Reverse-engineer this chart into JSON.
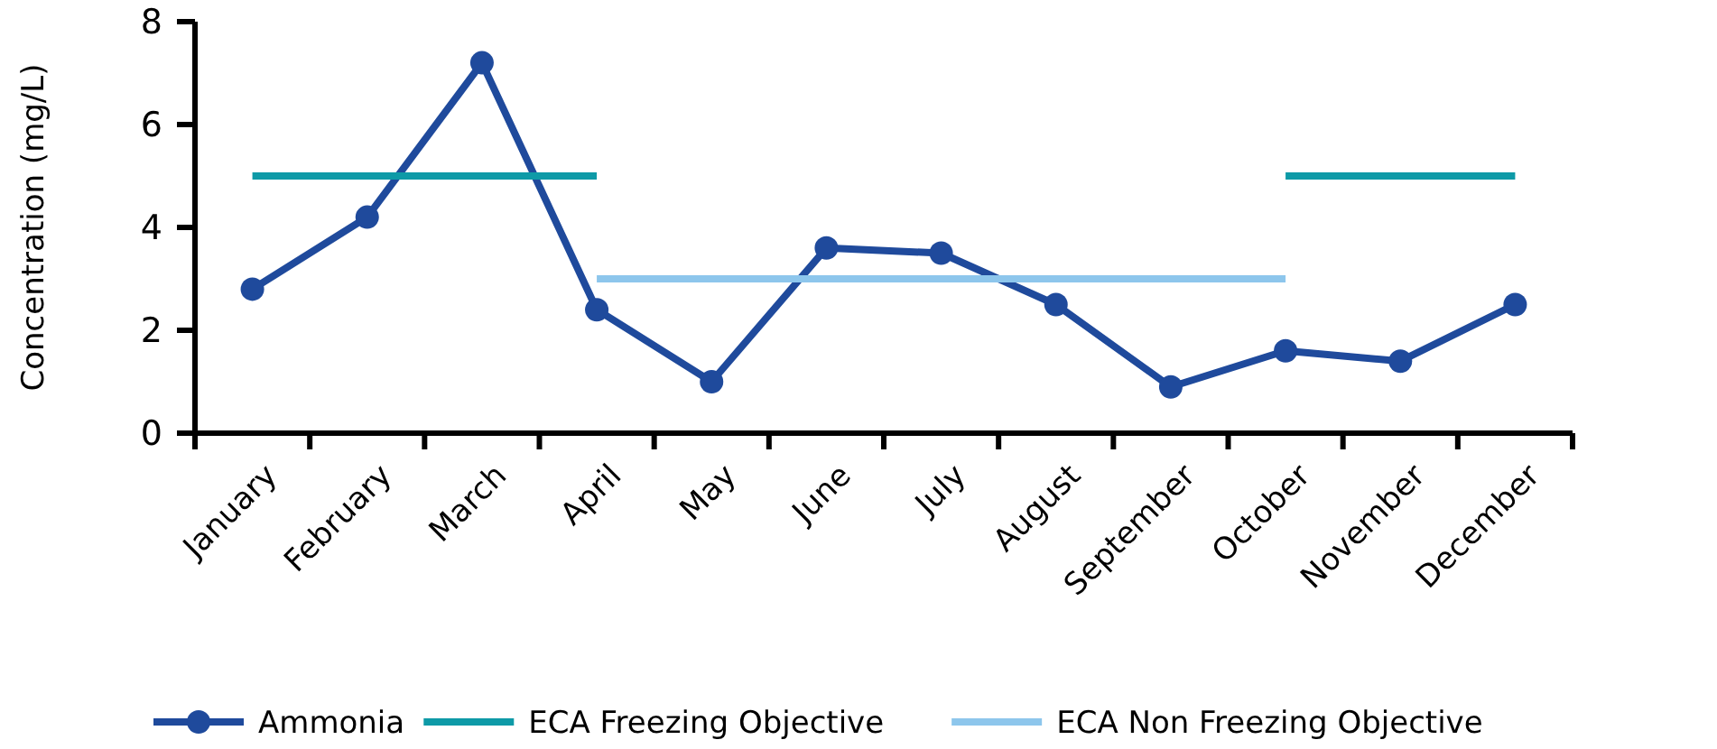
{
  "chart_data": {
    "type": "line",
    "ylabel": "Concentration (mg/L)",
    "categories": [
      "January",
      "February",
      "March",
      "April",
      "May",
      "June",
      "July",
      "August",
      "September",
      "October",
      "November",
      "December"
    ],
    "series": [
      {
        "name": "Ammonia",
        "color": "#1f4a9c",
        "marker": "circle",
        "values": [
          2.8,
          4.2,
          7.2,
          2.4,
          1.0,
          3.6,
          3.5,
          2.5,
          0.9,
          1.6,
          1.4,
          2.5
        ]
      },
      {
        "name": "ECA Freezing Objective",
        "color": "#0e9aa7",
        "marker": "none",
        "values": [
          5,
          5,
          5,
          5,
          null,
          null,
          null,
          null,
          null,
          5,
          5,
          5
        ]
      },
      {
        "name": "ECA Non Freezing Objective",
        "color": "#8dc6ec",
        "marker": "none",
        "values": [
          null,
          null,
          null,
          3,
          3,
          3,
          3,
          3,
          3,
          3,
          null,
          null
        ]
      }
    ],
    "ylim": [
      0,
      8
    ],
    "yticks": [
      0,
      2,
      4,
      6,
      8
    ],
    "grid": false,
    "legend": "bottom"
  }
}
